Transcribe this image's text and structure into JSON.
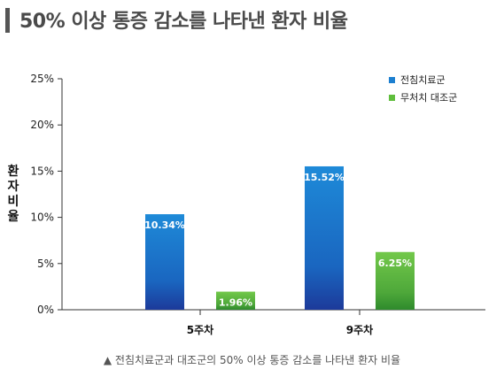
{
  "header": {
    "title": "50% 이상 통증 감소를 나타낸 환자 비율"
  },
  "caption": {
    "text": "▲ 전침치료군과 대조군의 50% 이상 통증 감소를 나타낸 환자 비율"
  },
  "colors": {
    "series1": "#1c7fd0",
    "series2": "#5fbe3c"
  },
  "chart_data": {
    "type": "bar",
    "title": "50% 이상 통증 감소를 나타낸 환자 비율",
    "ylabel": "환자비율",
    "xlabel": "",
    "categories": [
      "5주차",
      "9주차"
    ],
    "series": [
      {
        "name": "전침치료군",
        "values": [
          10.34,
          15.52
        ],
        "labels": [
          "10.34%",
          "15.52%"
        ]
      },
      {
        "name": "무처치 대조군",
        "values": [
          1.96,
          6.25
        ],
        "labels": [
          "1.96%",
          "6.25%"
        ]
      }
    ],
    "ylim": [
      0,
      25
    ],
    "yticks": [
      0,
      5,
      10,
      15,
      20,
      25
    ],
    "ytick_labels": [
      "0%",
      "5%",
      "10%",
      "15%",
      "20%",
      "25%"
    ],
    "grid": false,
    "legend": "top-right"
  }
}
